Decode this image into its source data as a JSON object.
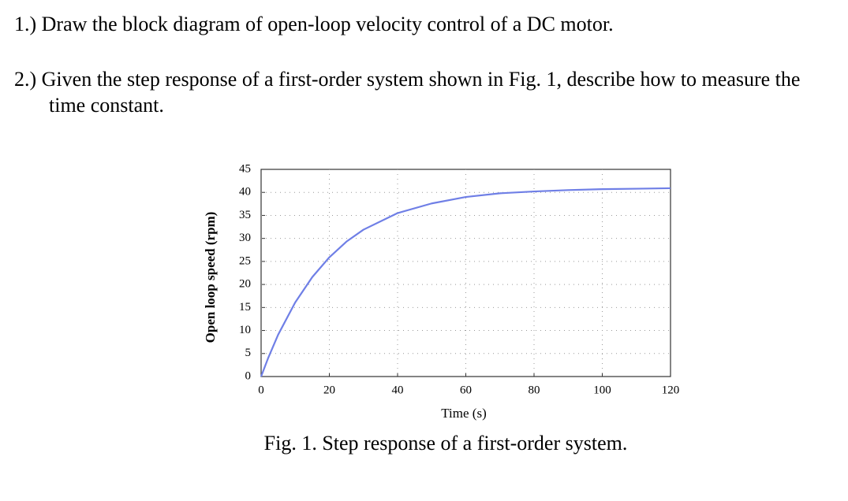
{
  "questions": [
    "1.) Draw the block diagram of open-loop velocity control of a DC motor.",
    "2.) Given the step response of a first-order system shown in Fig. 1, describe how to measure the time constant."
  ],
  "chart_data": {
    "type": "line",
    "x_label": "Time (s)",
    "y_label": "Open loop speed (rpm)",
    "caption": "Fig. 1. Step response of a first-order system.",
    "x": [
      0,
      2,
      5,
      10,
      15,
      20,
      25,
      30,
      40,
      50,
      60,
      70,
      80,
      90,
      100,
      110,
      120
    ],
    "values": [
      0,
      3.9,
      9.1,
      16.1,
      21.6,
      25.9,
      29.3,
      31.9,
      35.5,
      37.6,
      39.0,
      39.8,
      40.2,
      40.5,
      40.7,
      40.8,
      40.9
    ],
    "color": "#6f7fe6",
    "xlim": [
      0,
      120
    ],
    "ylim": [
      0,
      45
    ],
    "xticks": [
      0,
      20,
      40,
      60,
      80,
      100,
      120
    ],
    "yticks": [
      0,
      5,
      10,
      15,
      20,
      25,
      30,
      35,
      40,
      45
    ],
    "grid": true
  }
}
